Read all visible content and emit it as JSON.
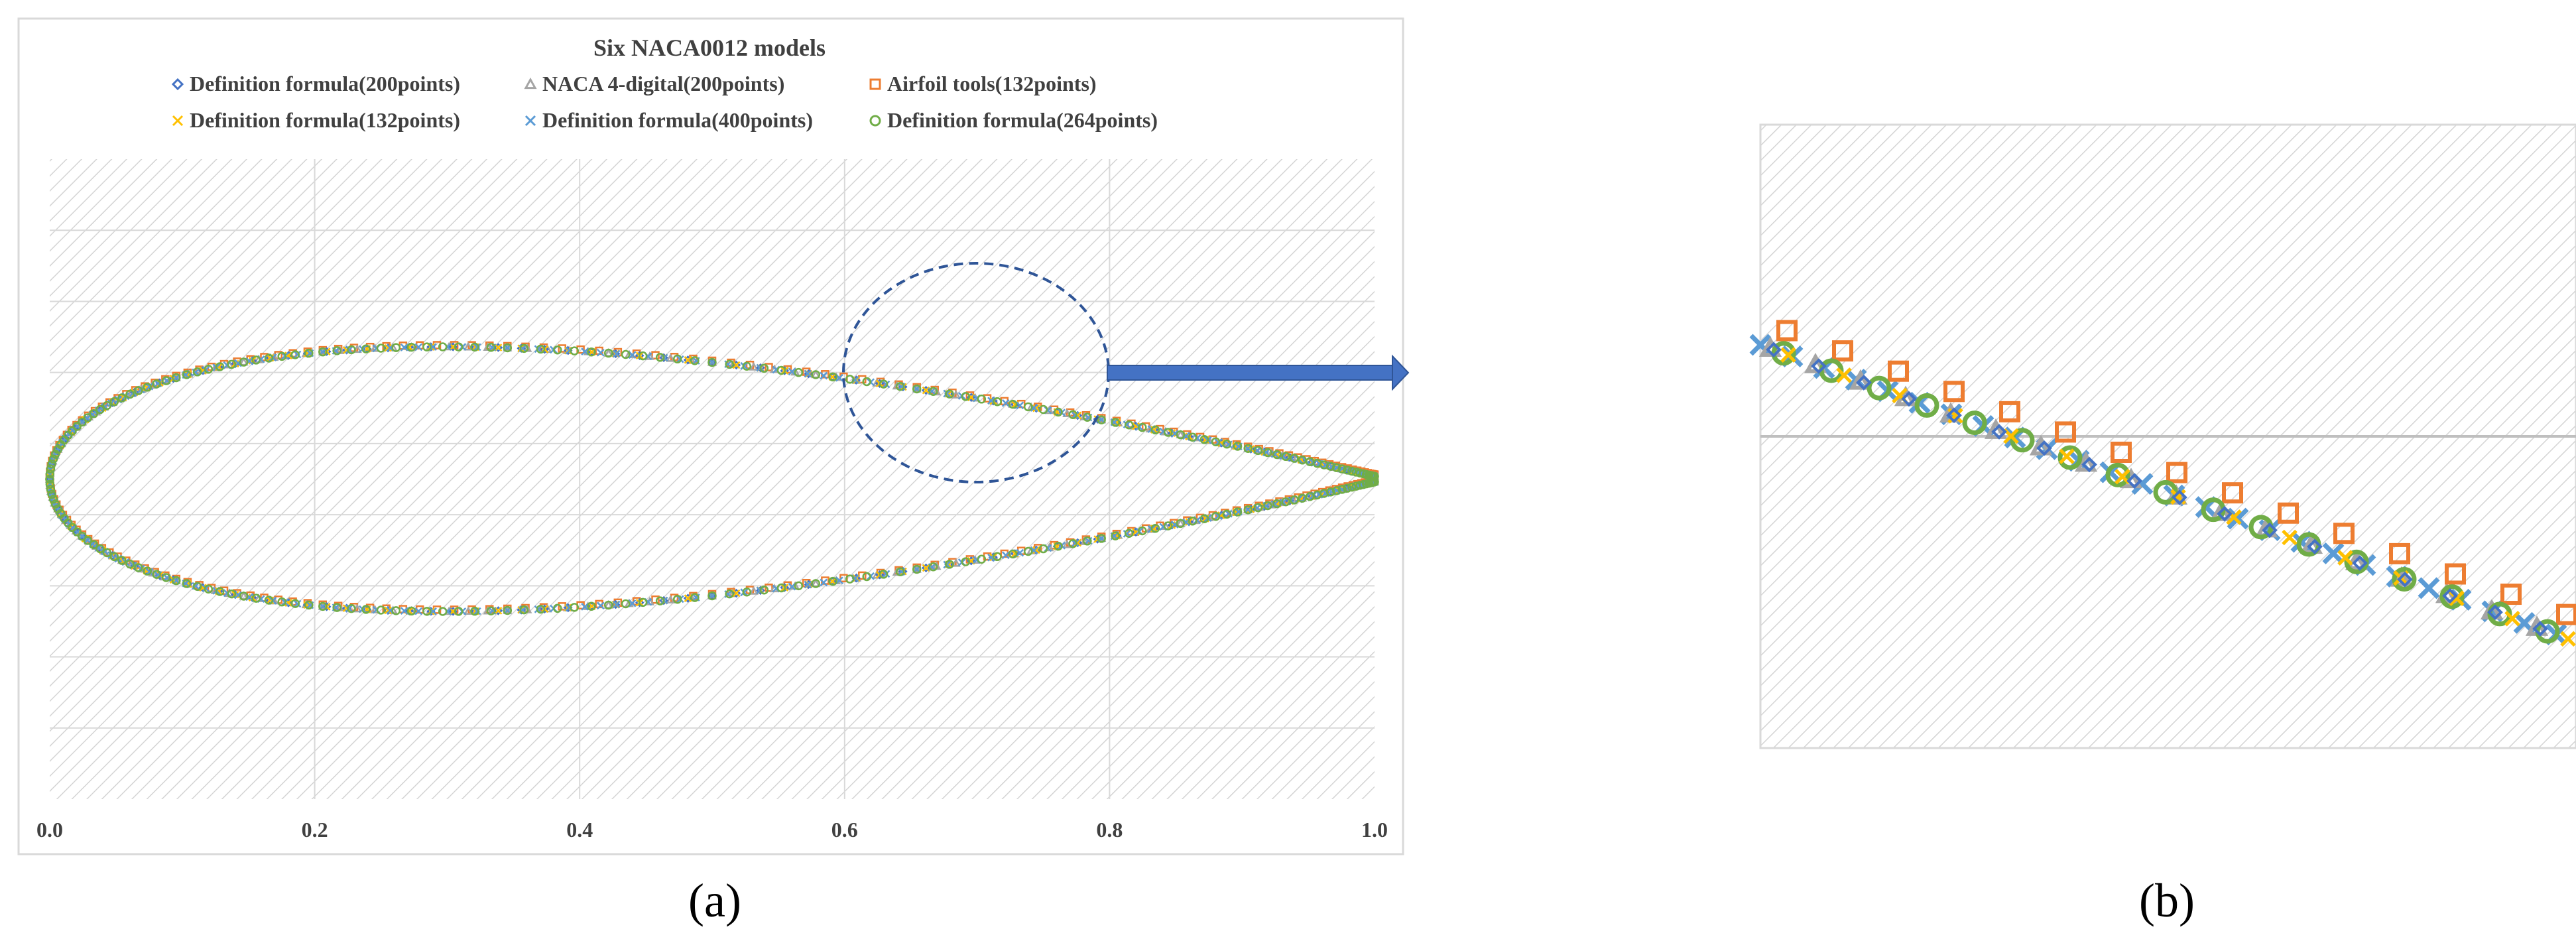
{
  "figure": {
    "panel_a_label": "(a)",
    "panel_b_label": "(b)"
  },
  "chart_data": [
    {
      "type": "scatter",
      "title": "Six NACA0012 models",
      "xlabel": "",
      "ylabel": "",
      "xlim": [
        0.0,
        1.0
      ],
      "ylim": [
        -0.1,
        0.08
      ],
      "x_ticks": [
        "0.0",
        "0.2",
        "0.4",
        "0.6",
        "0.8",
        "1.0"
      ],
      "grid": true,
      "legend_position": "top",
      "series": [
        {
          "name": "Definition formula(200points)",
          "marker": "diamond-open",
          "color": "#4472C4",
          "points": 200
        },
        {
          "name": "NACA 4-digital(200points)",
          "marker": "triangle-open",
          "color": "#A5A5A5",
          "points": 200
        },
        {
          "name": "Airfoil tools(132points)",
          "marker": "square-open",
          "color": "#ED7D31",
          "points": 132
        },
        {
          "name": "Definition formula(132points)",
          "marker": "x",
          "color": "#FFC000",
          "points": 132
        },
        {
          "name": "Definition formula(400points)",
          "marker": "x",
          "color": "#5B9BD5",
          "points": 400
        },
        {
          "name": "Definition formula(264points)",
          "marker": "circle-open",
          "color": "#70AD47",
          "points": 264
        }
      ],
      "shape": {
        "airfoil": "NACA0012",
        "max_thickness_fraction": 0.12,
        "chord": 1.0
      },
      "annotations": [
        "dashed ellipse around x≈0.6–0.8 upper surface",
        "arrow pointing to panel (b)"
      ]
    },
    {
      "type": "scatter",
      "title": "",
      "description_of_view": "zoom of upper surface in the circled region of panel (a)",
      "xlim": [
        0.6,
        0.8
      ],
      "grid": true,
      "series_markers": [
        "x",
        "square-open",
        "triangle-open",
        "circle-open",
        "diamond-open"
      ]
    }
  ]
}
